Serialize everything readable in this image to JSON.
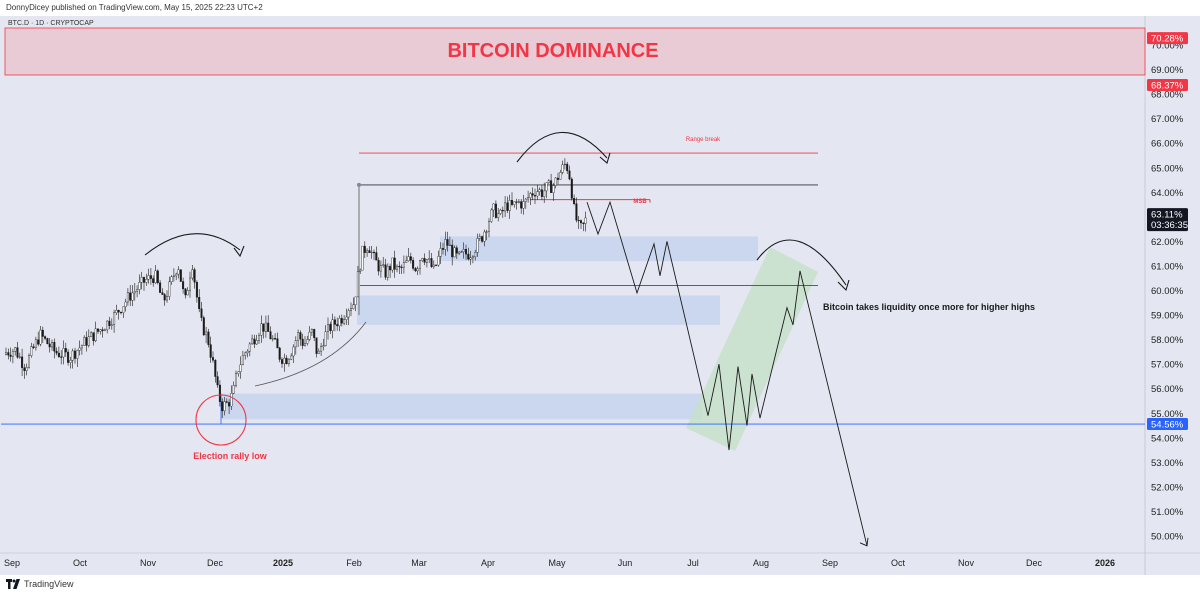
{
  "header": {
    "published": "DonnyDicey published on TradingView.com, May 15, 2025 22:23 UTC+2"
  },
  "footer": {
    "brand": "TradingView"
  },
  "chart_data": {
    "type": "candlestick",
    "symbol": "BTC.D · 1D · CRYPTOCAP",
    "title": "BITCOIN DOMINANCE",
    "ylim": [
      49.5,
      70.6
    ],
    "y_ticks": [
      50,
      51,
      52,
      53,
      54,
      55,
      56,
      57,
      58,
      59,
      60,
      61,
      62,
      63,
      64,
      65,
      66,
      67,
      68,
      69,
      70
    ],
    "y_tick_format": "{v}.00%",
    "x_ticks": [
      "Sep",
      "Oct",
      "Nov",
      "Dec",
      "2025",
      "Feb",
      "Mar",
      "Apr",
      "May",
      "Jun",
      "Jul",
      "Aug",
      "Sep",
      "Oct",
      "Nov",
      "Dec",
      "2026"
    ],
    "current_price": {
      "label": "63.11%",
      "countdown": "03:36:35",
      "value": 63.11
    },
    "price_labels": [
      {
        "label": "70.28%",
        "value": 70.28,
        "color": "#f23645"
      },
      {
        "label": "68.37%",
        "value": 68.37,
        "color": "#f23645"
      },
      {
        "label": "54.56%",
        "value": 54.56,
        "color": "#2962ff"
      }
    ],
    "annotations": {
      "range_break": "Range break",
      "msb": "MSB",
      "election": "Election rally low",
      "liquidity": "Bitcoin takes liquidity once more for higher highs"
    },
    "ohlc_anchors": [
      [
        0,
        57.4
      ],
      [
        15,
        57.6
      ],
      [
        25,
        56.9
      ],
      [
        40,
        58.2
      ],
      [
        55,
        57.5
      ],
      [
        70,
        57.3
      ],
      [
        85,
        57.9
      ],
      [
        100,
        58.4
      ],
      [
        115,
        59.0
      ],
      [
        130,
        59.8
      ],
      [
        145,
        60.4
      ],
      [
        155,
        60.6
      ],
      [
        163,
        59.5
      ],
      [
        170,
        60.2
      ],
      [
        178,
        61.1
      ],
      [
        185,
        59.5
      ],
      [
        192,
        61.2
      ],
      [
        200,
        58.8
      ],
      [
        208,
        58.0
      ],
      [
        213,
        57.0
      ],
      [
        218,
        55.8
      ],
      [
        222,
        55.3
      ],
      [
        228,
        55.4
      ],
      [
        233,
        55.8
      ],
      [
        238,
        56.8
      ],
      [
        244,
        57.4
      ],
      [
        250,
        57.8
      ],
      [
        256,
        58.2
      ],
      [
        262,
        58.6
      ],
      [
        268,
        58.3
      ],
      [
        274,
        57.9
      ],
      [
        280,
        57.3
      ],
      [
        286,
        57.2
      ],
      [
        292,
        57.6
      ],
      [
        298,
        58.2
      ],
      [
        304,
        57.8
      ],
      [
        312,
        58.3
      ],
      [
        318,
        57.3
      ],
      [
        324,
        58.1
      ],
      [
        330,
        58.5
      ],
      [
        336,
        58.7
      ],
      [
        342,
        58.9
      ],
      [
        348,
        59.3
      ],
      [
        354,
        59.5
      ],
      [
        358,
        60.6
      ],
      [
        362,
        61.5
      ],
      [
        368,
        61.9
      ],
      [
        374,
        61.3
      ],
      [
        380,
        60.9
      ],
      [
        386,
        60.7
      ],
      [
        392,
        61.1
      ],
      [
        398,
        60.8
      ],
      [
        404,
        61.0
      ],
      [
        410,
        61.3
      ],
      [
        416,
        60.9
      ],
      [
        422,
        61.5
      ],
      [
        428,
        61.2
      ],
      [
        434,
        60.8
      ],
      [
        440,
        61.5
      ],
      [
        446,
        62.0
      ],
      [
        452,
        61.6
      ],
      [
        458,
        61.3
      ],
      [
        464,
        61.5
      ],
      [
        470,
        61.5
      ],
      [
        476,
        61.8
      ],
      [
        482,
        62.2
      ],
      [
        488,
        62.8
      ],
      [
        494,
        63.3
      ],
      [
        500,
        63.0
      ],
      [
        506,
        63.5
      ],
      [
        512,
        63.4
      ],
      [
        518,
        63.6
      ],
      [
        524,
        63.5
      ],
      [
        530,
        63.9
      ],
      [
        536,
        64.1
      ],
      [
        542,
        64.0
      ],
      [
        548,
        64.2
      ],
      [
        554,
        64.3
      ],
      [
        560,
        64.8
      ],
      [
        566,
        65.2
      ],
      [
        570,
        64.6
      ],
      [
        574,
        63.3
      ],
      [
        578,
        62.6
      ],
      [
        582,
        62.5
      ],
      [
        586,
        62.9
      ]
    ],
    "projection_path": [
      [
        587,
        63.6
      ],
      [
        598,
        62.3
      ],
      [
        610,
        63.6
      ],
      [
        637,
        59.9
      ],
      [
        654,
        61.9
      ],
      [
        660,
        60.6
      ],
      [
        667,
        62.0
      ],
      [
        708,
        54.9
      ],
      [
        719,
        57.0
      ],
      [
        729,
        53.5
      ],
      [
        738,
        56.9
      ],
      [
        747,
        54.5
      ],
      [
        752,
        56.6
      ],
      [
        760,
        54.8
      ],
      [
        787,
        59.3
      ],
      [
        793,
        58.6
      ],
      [
        800,
        60.8
      ],
      [
        867,
        49.6
      ]
    ],
    "ranges": {
      "top_line": 64.3,
      "mid_line": 60.2,
      "range_break": 65.6,
      "msb": 63.7,
      "support_line": 54.56
    },
    "zones": [
      {
        "x1": 440,
        "x2": 758,
        "y1": 62.2,
        "y2": 61.2
      },
      {
        "x1": 357,
        "x2": 720,
        "y1": 59.8,
        "y2": 58.6
      },
      {
        "x1": 221,
        "x2": 702,
        "y1": 55.8,
        "y2": 54.75
      }
    ],
    "colors": {
      "plot_bg": "#e4e6f1",
      "red": "#f23645",
      "blue": "#2962ff",
      "zone": "#c7d3ee",
      "green_zone": "#c7e0cb"
    }
  }
}
